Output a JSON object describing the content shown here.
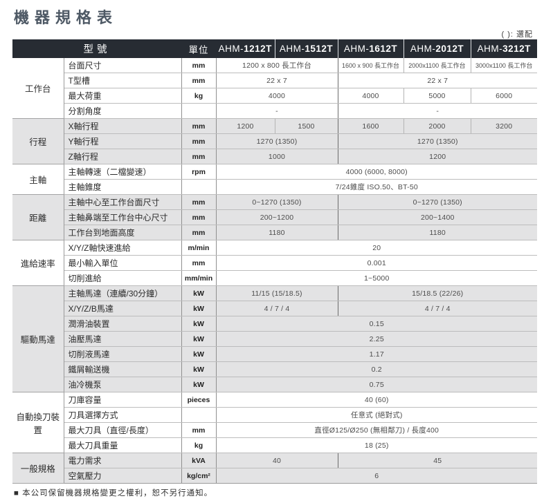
{
  "title": "機器規格表",
  "legend": "( ): 選配",
  "footer_note": "■ 本公司保留機器規格變更之權利，恕不另行通知。",
  "colors": {
    "header_bg": "#272c33",
    "header_text": "#ffffff",
    "band_gray": "#e3e3e4",
    "band_white": "#ffffff",
    "title_text": "#4e5965"
  },
  "table": {
    "header": {
      "model_label": "型號",
      "unit_label": "單位",
      "models": [
        {
          "prefix": "AHM-",
          "number": "1212T"
        },
        {
          "prefix": "AHM-",
          "number": "1512T"
        },
        {
          "prefix": "AHM-",
          "number": "1612T"
        },
        {
          "prefix": "AHM-",
          "number": "2012T"
        },
        {
          "prefix": "AHM-",
          "number": "3212T"
        }
      ]
    },
    "groups": [
      {
        "name": "工作台",
        "shade": "white",
        "rows": [
          {
            "spec": "台面尺寸",
            "unit": "mm",
            "cells": [
              {
                "text": "1200 x 800 長工作台",
                "span": 2
              },
              {
                "text": "1600 x 900 長工作台",
                "span": 1
              },
              {
                "text": "2000x1100 長工作台",
                "span": 1
              },
              {
                "text": "3000x1100 長工作台",
                "span": 1
              }
            ]
          },
          {
            "spec": "T型槽",
            "unit": "mm",
            "cells": [
              {
                "text": "22 x 7",
                "span": 2
              },
              {
                "text": "22 x 7",
                "span": 3
              }
            ]
          },
          {
            "spec": "最大荷重",
            "unit": "kg",
            "cells": [
              {
                "text": "4000",
                "span": 2
              },
              {
                "text": "4000",
                "span": 1
              },
              {
                "text": "5000",
                "span": 1
              },
              {
                "text": "6000",
                "span": 1
              }
            ]
          },
          {
            "spec": "分割角度",
            "unit": "",
            "cells": [
              {
                "text": "-",
                "span": 2
              },
              {
                "text": "-",
                "span": 3
              }
            ]
          }
        ]
      },
      {
        "name": "行程",
        "shade": "gray",
        "rows": [
          {
            "spec": "X軸行程",
            "unit": "mm",
            "cells": [
              {
                "text": "1200",
                "span": 1
              },
              {
                "text": "1500",
                "span": 1
              },
              {
                "text": "1600",
                "span": 1
              },
              {
                "text": "2000",
                "span": 1
              },
              {
                "text": "3200",
                "span": 1
              }
            ]
          },
          {
            "spec": "Y軸行程",
            "unit": "mm",
            "cells": [
              {
                "text": "1270 (1350)",
                "span": 2
              },
              {
                "text": "1270 (1350)",
                "span": 3
              }
            ]
          },
          {
            "spec": "Z軸行程",
            "unit": "mm",
            "cells": [
              {
                "text": "1000",
                "span": 2
              },
              {
                "text": "1200",
                "span": 3
              }
            ]
          }
        ]
      },
      {
        "name": "主軸",
        "shade": "white",
        "rows": [
          {
            "spec": "主軸轉速（二檔變速）",
            "unit": "rpm",
            "cells": [
              {
                "text": "4000 (6000, 8000)",
                "span": 5
              }
            ]
          },
          {
            "spec": "主軸錐度",
            "unit": "",
            "cells": [
              {
                "text": "7/24錐度 ISO.50、BT-50",
                "span": 5
              }
            ]
          }
        ]
      },
      {
        "name": "距離",
        "shade": "gray",
        "rows": [
          {
            "spec": "主軸中心至工作台面尺寸",
            "unit": "mm",
            "cells": [
              {
                "text": "0~1270 (1350)",
                "span": 2
              },
              {
                "text": "0~1270 (1350)",
                "span": 3
              }
            ]
          },
          {
            "spec": "主軸鼻端至工作台中心尺寸",
            "unit": "mm",
            "cells": [
              {
                "text": "200~1200",
                "span": 2
              },
              {
                "text": "200~1400",
                "span": 3
              }
            ]
          },
          {
            "spec": "工作台到地面高度",
            "unit": "mm",
            "cells": [
              {
                "text": "1180",
                "span": 2
              },
              {
                "text": "1180",
                "span": 3
              }
            ]
          }
        ]
      },
      {
        "name": "進給速率",
        "shade": "white",
        "rows": [
          {
            "spec": "X/Y/Z軸快速進給",
            "unit": "m/min",
            "cells": [
              {
                "text": "20",
                "span": 5
              }
            ]
          },
          {
            "spec": "最小輸入單位",
            "unit": "mm",
            "cells": [
              {
                "text": "0.001",
                "span": 5
              }
            ]
          },
          {
            "spec": "切削進給",
            "unit": "mm/min",
            "cells": [
              {
                "text": "1~5000",
                "span": 5
              }
            ]
          }
        ]
      },
      {
        "name": "驅動馬達",
        "shade": "gray",
        "rows": [
          {
            "spec": "主軸馬達（連續/30分鐘）",
            "unit": "kW",
            "cells": [
              {
                "text": "11/15 (15/18.5)",
                "span": 2
              },
              {
                "text": "15/18.5 (22/26)",
                "span": 3
              }
            ]
          },
          {
            "spec": "X/Y/Z/B馬達",
            "unit": "kW",
            "cells": [
              {
                "text": "4 / 7 / 4",
                "span": 2
              },
              {
                "text": "4 / 7 / 4",
                "span": 3
              }
            ]
          },
          {
            "spec": "潤滑油裝置",
            "unit": "kW",
            "cells": [
              {
                "text": "0.15",
                "span": 5
              }
            ]
          },
          {
            "spec": "油壓馬達",
            "unit": "kW",
            "cells": [
              {
                "text": "2.25",
                "span": 5
              }
            ]
          },
          {
            "spec": "切削液馬達",
            "unit": "kW",
            "cells": [
              {
                "text": "1.17",
                "span": 5
              }
            ]
          },
          {
            "spec": "鐵屑輸送機",
            "unit": "kW",
            "cells": [
              {
                "text": "0.2",
                "span": 5
              }
            ]
          },
          {
            "spec": "油冷機泵",
            "unit": "kW",
            "cells": [
              {
                "text": "0.75",
                "span": 5
              }
            ]
          }
        ]
      },
      {
        "name": "自動換刀裝置",
        "shade": "white",
        "rows": [
          {
            "spec": "刀庫容量",
            "unit": "pieces",
            "cells": [
              {
                "text": "40 (60)",
                "span": 5
              }
            ]
          },
          {
            "spec": "刀具選擇方式",
            "unit": "",
            "cells": [
              {
                "text": "任意式 (絕對式)",
                "span": 5
              }
            ]
          },
          {
            "spec": "最大刀具（直徑/長度）",
            "unit": "mm",
            "cells": [
              {
                "text": "直徑Ø125/Ø250 (無相鄰刀) / 長度400",
                "span": 5
              }
            ]
          },
          {
            "spec": "最大刀具重量",
            "unit": "kg",
            "cells": [
              {
                "text": "18 (25)",
                "span": 5
              }
            ]
          }
        ]
      },
      {
        "name": "一般規格",
        "shade": "gray",
        "rows": [
          {
            "spec": "電力需求",
            "unit": "kVA",
            "cells": [
              {
                "text": "40",
                "span": 2
              },
              {
                "text": "45",
                "span": 3
              }
            ]
          },
          {
            "spec": "空氣壓力",
            "unit": "kg/cm²",
            "cells": [
              {
                "text": "6",
                "span": 5
              }
            ]
          }
        ]
      }
    ]
  }
}
